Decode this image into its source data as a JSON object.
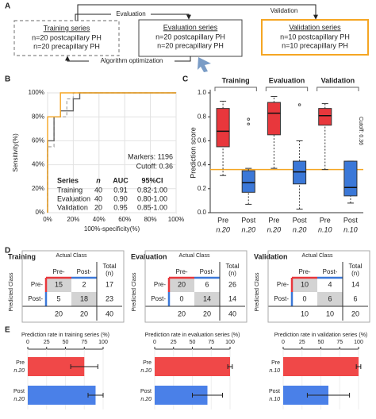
{
  "panel_labels": [
    "A",
    "B",
    "C",
    "D",
    "E"
  ],
  "diagram": {
    "nodes": [
      {
        "title": "Training series",
        "lines": [
          "n=20 postcapillary PH",
          "n=20 precapillary PH"
        ]
      },
      {
        "title": "Evaluation series",
        "lines": [
          "n=20 postcapillary PH",
          "n=20 precapillary PH"
        ]
      },
      {
        "title": "Validation series",
        "lines": [
          "n=10 postcapillary PH",
          "n=10 precapillary PH"
        ]
      }
    ],
    "edges": [
      {
        "label": "Evaluation"
      },
      {
        "label": "Validation"
      },
      {
        "label": "Algorithm optimization"
      }
    ]
  },
  "chart_data": [
    {
      "type": "line",
      "xlabel": "100%-specificity(%)",
      "ylabel": "Sensitivity(%)",
      "xlim": [
        0,
        100
      ],
      "ylim": [
        0,
        100
      ],
      "xticks": [
        {
          "value": 0,
          "label": "0%"
        },
        {
          "value": 20,
          "label": "20%"
        },
        {
          "value": 40,
          "label": "40%"
        },
        {
          "value": 60,
          "label": "60%"
        },
        {
          "value": 80,
          "label": "80%"
        },
        {
          "value": 100,
          "label": "100%"
        }
      ],
      "yticks": [
        {
          "value": 0,
          "label": "0%"
        },
        {
          "value": 20,
          "label": "20%"
        },
        {
          "value": 40,
          "label": "40%"
        },
        {
          "value": 60,
          "label": "60%"
        },
        {
          "value": 80,
          "label": "80%"
        },
        {
          "value": 100,
          "label": "100%"
        }
      ],
      "grid": true,
      "annotations": [
        "Markers: 1196",
        "Cutoff: 0.36"
      ],
      "table_header": [
        "Series",
        "n",
        "AUC",
        "95%CI"
      ],
      "series": [
        {
          "name": "Training",
          "color": "#b0b0b0",
          "dashed": true,
          "n": 40,
          "auc": "0.91",
          "ci": "0.82-1.00",
          "x": [
            0,
            0,
            5,
            5,
            15,
            15,
            20,
            20,
            100
          ],
          "values": [
            0,
            55,
            55,
            80,
            80,
            95,
            95,
            100,
            100
          ]
        },
        {
          "name": "Evaluation",
          "color": "#666666",
          "dashed": false,
          "n": 40,
          "auc": "0.90",
          "ci": "0.80-1.00",
          "x": [
            0,
            0,
            5,
            5,
            10,
            10,
            20,
            20,
            25,
            25,
            100
          ],
          "values": [
            0,
            60,
            60,
            80,
            80,
            85,
            85,
            95,
            95,
            100,
            100
          ]
        },
        {
          "name": "Validation",
          "color": "#f5a623",
          "dashed": false,
          "n": 20,
          "auc": "0.95",
          "ci": "0.85-1.00",
          "x": [
            0,
            0,
            10,
            10,
            100
          ],
          "values": [
            0,
            80,
            80,
            100,
            100
          ]
        }
      ]
    },
    {
      "type": "box",
      "ylabel": "Prediction score",
      "ylim": [
        0,
        1
      ],
      "yticks": [
        {
          "value": 0,
          "label": "0.0"
        },
        {
          "value": 0.2,
          "label": "0.2"
        },
        {
          "value": 0.4,
          "label": "0.4"
        },
        {
          "value": 0.6,
          "label": "0.6"
        },
        {
          "value": 0.8,
          "label": "0.8"
        },
        {
          "value": 1,
          "label": "1.0"
        }
      ],
      "cutoff": {
        "value": 0.36,
        "label": "Cutoff: 0.36",
        "color": "#f5a623"
      },
      "groups": [
        {
          "name": "Training",
          "color": "#aaaaaa"
        },
        {
          "name": "Evaluation",
          "color": "#555555"
        },
        {
          "name": "Validation",
          "color": "#f5a623"
        }
      ],
      "categories": [
        "Pre",
        "Post",
        "Pre",
        "Post",
        "Pre",
        "Post"
      ],
      "n_labels": [
        "n.20",
        "n.20",
        "n.20",
        "n.20",
        "n.10",
        "n.10"
      ],
      "colors": [
        "#e8373c",
        "#3b78d8",
        "#e8373c",
        "#3b78d8",
        "#e8373c",
        "#3b78d8"
      ],
      "boxes": [
        {
          "min": 0.31,
          "q1": 0.55,
          "median": 0.68,
          "q3": 0.87,
          "max": 0.93,
          "outliers": []
        },
        {
          "min": 0.07,
          "q1": 0.17,
          "median": 0.25,
          "q3": 0.35,
          "max": 0.37,
          "outliers": [
            0.74,
            0.78
          ]
        },
        {
          "min": 0.37,
          "q1": 0.65,
          "median": 0.83,
          "q3": 0.92,
          "max": 0.97,
          "outliers": []
        },
        {
          "min": 0.03,
          "q1": 0.24,
          "median": 0.34,
          "q3": 0.43,
          "max": 0.6,
          "outliers": [
            0.9
          ]
        },
        {
          "min": 0.36,
          "q1": 0.73,
          "median": 0.81,
          "q3": 0.87,
          "max": 0.91,
          "outliers": []
        },
        {
          "min": 0.08,
          "q1": 0.14,
          "median": 0.21,
          "q3": 0.43,
          "max": 0.43,
          "outliers": []
        }
      ]
    },
    {
      "type": "hbar",
      "title": "Prediction rate in training series (%)",
      "categories": [
        "Pre",
        "Post"
      ],
      "n_labels": [
        "n.20",
        "n.20"
      ],
      "colors": [
        "#f04848",
        "#4a80e8"
      ],
      "xlim": [
        0,
        100
      ],
      "xticks": [
        0,
        25,
        50,
        75,
        100
      ],
      "values": [
        75,
        90
      ],
      "errors": [
        18,
        10
      ]
    },
    {
      "type": "hbar",
      "title": "Prediction rate in evaluation series (%)",
      "categories": [
        "Pre",
        "Post"
      ],
      "n_labels": [
        "n.20",
        "n.20"
      ],
      "colors": [
        "#f04848",
        "#4a80e8"
      ],
      "xlim": [
        0,
        100
      ],
      "xticks": [
        0,
        25,
        50,
        75,
        100
      ],
      "values": [
        100,
        70
      ],
      "errors": [
        3,
        20
      ]
    },
    {
      "type": "hbar",
      "title": "Prediction rate in validation series (%)",
      "categories": [
        "Pre",
        "Post"
      ],
      "n_labels": [
        "n.10",
        "n.10"
      ],
      "colors": [
        "#f04848",
        "#4a80e8"
      ],
      "xlim": [
        0,
        100
      ],
      "xticks": [
        0,
        25,
        50,
        75,
        100
      ],
      "values": [
        100,
        60
      ],
      "errors": [
        3,
        28
      ]
    }
  ],
  "matrices": [
    {
      "title": "Training",
      "color": "#aaaaaa",
      "actual_label": "Actual Class",
      "predicted_label": "Predicted Class",
      "columns": [
        "Pre-",
        "Post-"
      ],
      "total_label": [
        "Total",
        "(n)"
      ],
      "rows": [
        {
          "label": "Pre-",
          "cells": [
            15,
            2,
            17
          ]
        },
        {
          "label": "Post-",
          "cells": [
            5,
            18,
            23
          ]
        }
      ],
      "totals": [
        20,
        20,
        40
      ]
    },
    {
      "title": "Evaluation",
      "color": "#555555",
      "actual_label": "Actual Class",
      "predicted_label": "Predicted Class",
      "columns": [
        "Pre-",
        "Post-"
      ],
      "total_label": [
        "Total",
        "(n)"
      ],
      "rows": [
        {
          "label": "Pre-",
          "cells": [
            20,
            6,
            26
          ]
        },
        {
          "label": "Post-",
          "cells": [
            0,
            14,
            14
          ]
        }
      ],
      "totals": [
        20,
        20,
        40
      ]
    },
    {
      "title": "Validation",
      "color": "#f5a623",
      "actual_label": "Actual Class",
      "predicted_label": "Predicted Class",
      "columns": [
        "Pre-",
        "Post-"
      ],
      "total_label": [
        "Total",
        "(n)"
      ],
      "rows": [
        {
          "label": "Pre-",
          "cells": [
            10,
            4,
            14
          ]
        },
        {
          "label": "Post-",
          "cells": [
            0,
            6,
            6
          ]
        }
      ],
      "totals": [
        10,
        10,
        20
      ]
    }
  ]
}
